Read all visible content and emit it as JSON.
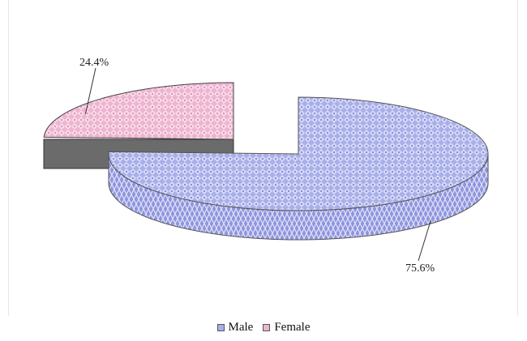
{
  "colors": {
    "male": "#a8aee8",
    "male_side": "#8a90d6",
    "female": "#eeb4d0",
    "female_side": "#6b6b6b"
  },
  "chart_data": {
    "type": "pie",
    "title": "",
    "exploded": "Female",
    "slices": [
      {
        "name": "Male",
        "value": 75.6,
        "label": "75.6%"
      },
      {
        "name": "Female",
        "value": 24.4,
        "label": "24.4%"
      }
    ],
    "legend": {
      "placement": "bottom",
      "items": [
        "Male",
        "Female"
      ]
    }
  }
}
